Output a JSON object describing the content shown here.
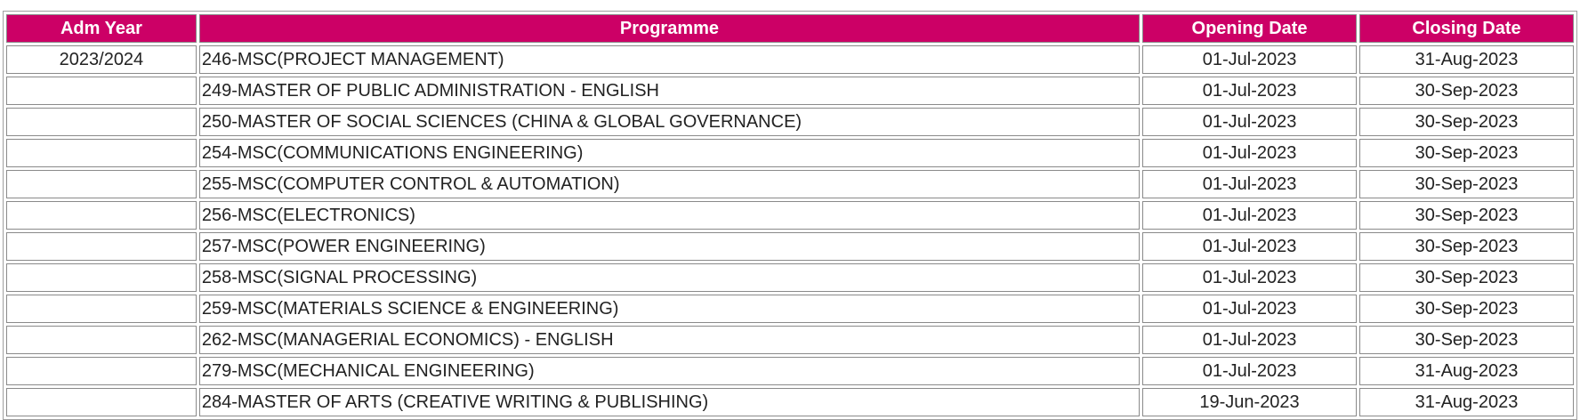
{
  "table": {
    "headers": {
      "adm_year": "Adm Year",
      "programme": "Programme",
      "opening_date": "Opening Date",
      "closing_date": "Closing Date"
    },
    "rows": [
      {
        "adm_year": "2023/2024",
        "programme": "246-MSC(PROJECT MANAGEMENT)",
        "opening_date": "01-Jul-2023",
        "closing_date": "31-Aug-2023"
      },
      {
        "adm_year": "",
        "programme": "249-MASTER OF PUBLIC ADMINISTRATION - ENGLISH",
        "opening_date": "01-Jul-2023",
        "closing_date": "30-Sep-2023"
      },
      {
        "adm_year": "",
        "programme": "250-MASTER OF SOCIAL SCIENCES (CHINA & GLOBAL GOVERNANCE)",
        "opening_date": "01-Jul-2023",
        "closing_date": "30-Sep-2023"
      },
      {
        "adm_year": "",
        "programme": "254-MSC(COMMUNICATIONS ENGINEERING)",
        "opening_date": "01-Jul-2023",
        "closing_date": "30-Sep-2023"
      },
      {
        "adm_year": "",
        "programme": "255-MSC(COMPUTER CONTROL & AUTOMATION)",
        "opening_date": "01-Jul-2023",
        "closing_date": "30-Sep-2023"
      },
      {
        "adm_year": "",
        "programme": "256-MSC(ELECTRONICS)",
        "opening_date": "01-Jul-2023",
        "closing_date": "30-Sep-2023"
      },
      {
        "adm_year": "",
        "programme": "257-MSC(POWER ENGINEERING)",
        "opening_date": "01-Jul-2023",
        "closing_date": "30-Sep-2023"
      },
      {
        "adm_year": "",
        "programme": "258-MSC(SIGNAL PROCESSING)",
        "opening_date": "01-Jul-2023",
        "closing_date": "30-Sep-2023"
      },
      {
        "adm_year": "",
        "programme": "259-MSC(MATERIALS SCIENCE & ENGINEERING)",
        "opening_date": "01-Jul-2023",
        "closing_date": "30-Sep-2023"
      },
      {
        "adm_year": "",
        "programme": "262-MSC(MANAGERIAL ECONOMICS) - ENGLISH",
        "opening_date": "01-Jul-2023",
        "closing_date": "30-Sep-2023"
      },
      {
        "adm_year": "",
        "programme": "279-MSC(MECHANICAL ENGINEERING)",
        "opening_date": "01-Jul-2023",
        "closing_date": "31-Aug-2023"
      },
      {
        "adm_year": "",
        "programme": "284-MASTER OF ARTS (CREATIVE WRITING & PUBLISHING)",
        "opening_date": "19-Jun-2023",
        "closing_date": "31-Aug-2023"
      }
    ]
  },
  "colors": {
    "header_bg": "#cc0066",
    "header_text": "#ffffff"
  }
}
